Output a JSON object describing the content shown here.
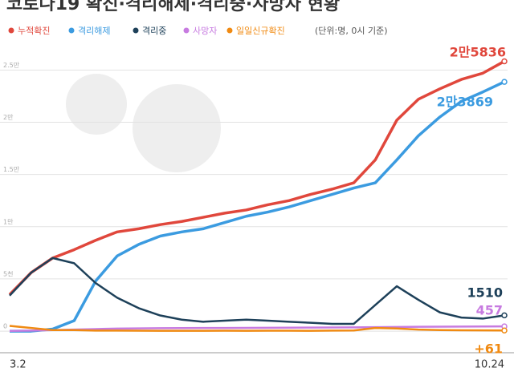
{
  "chart_data": {
    "type": "line",
    "title": "코로나19 확진·격리해제·격리중·사망자 현황",
    "subtitle": "(단위:명, 0시 기준)",
    "categories": [
      "3.2",
      null,
      null,
      null,
      null,
      null,
      null,
      null,
      null,
      null,
      null,
      null,
      null,
      null,
      null,
      null,
      null,
      null,
      null,
      null,
      null,
      null,
      null,
      "10.24"
    ],
    "series": [
      {
        "name": "누적확진",
        "color": "#e0473c",
        "values": [
          3500,
          5600,
          7000,
          7800,
          8700,
          9500,
          9800,
          10200,
          10500,
          10900,
          11300,
          11600,
          12100,
          12500,
          13100,
          13600,
          14200,
          16400,
          20200,
          22200,
          23200,
          24100,
          24700,
          25836
        ],
        "value_labels": [
          null,
          null,
          null,
          null,
          null,
          null,
          null,
          null,
          null,
          null,
          null,
          null,
          null,
          null,
          null,
          null,
          null,
          null,
          null,
          null,
          null,
          null,
          null,
          "2만5836"
        ]
      },
      {
        "name": "격리해제",
        "color": "#3b9be0",
        "values": [
          0,
          0,
          200,
          1000,
          4800,
          7200,
          8300,
          9100,
          9500,
          9800,
          10400,
          11000,
          11400,
          11900,
          12500,
          13100,
          13700,
          14200,
          16400,
          18700,
          20500,
          22000,
          22900,
          23869
        ],
        "value_labels": [
          null,
          null,
          null,
          null,
          null,
          null,
          null,
          null,
          null,
          null,
          null,
          null,
          null,
          null,
          null,
          null,
          null,
          null,
          null,
          null,
          null,
          null,
          null,
          "2만3869"
        ]
      },
      {
        "name": "격리중",
        "color": "#1d4059",
        "values": [
          3400,
          5600,
          7000,
          6500,
          4600,
          3200,
          2200,
          1500,
          1100,
          900,
          1000,
          1100,
          1000,
          900,
          800,
          700,
          700,
          2500,
          4300,
          3000,
          1800,
          1300,
          1200,
          1510
        ],
        "value_labels": [
          null,
          null,
          null,
          null,
          null,
          null,
          null,
          null,
          null,
          null,
          null,
          null,
          null,
          null,
          null,
          null,
          null,
          null,
          null,
          null,
          null,
          null,
          null,
          "1510"
        ]
      },
      {
        "name": "사망자",
        "color": "#c77be0",
        "values": [
          20,
          50,
          100,
          150,
          200,
          240,
          260,
          280,
          290,
          300,
          300,
          310,
          320,
          330,
          340,
          350,
          360,
          380,
          400,
          420,
          430,
          440,
          450,
          457
        ],
        "value_labels": [
          null,
          null,
          null,
          null,
          null,
          null,
          null,
          null,
          null,
          null,
          null,
          null,
          null,
          null,
          null,
          null,
          null,
          null,
          null,
          null,
          null,
          null,
          null,
          "457"
        ]
      },
      {
        "name": "일일신규확진",
        "color": "#f08a12",
        "values": [
          500,
          300,
          100,
          100,
          50,
          50,
          40,
          30,
          30,
          30,
          40,
          30,
          40,
          40,
          30,
          50,
          60,
          300,
          250,
          150,
          100,
          80,
          70,
          61
        ],
        "value_labels": [
          null,
          null,
          null,
          null,
          null,
          null,
          null,
          null,
          null,
          null,
          null,
          null,
          null,
          null,
          null,
          null,
          null,
          null,
          null,
          null,
          null,
          null,
          null,
          "+61"
        ]
      }
    ],
    "ylim": [
      -1300,
      27100
    ],
    "yticks": [
      0,
      {
        "value": 5000,
        "label": "5천"
      },
      {
        "value": 10000,
        "label": "1만"
      },
      {
        "value": 15000,
        "label": "1.5만"
      },
      {
        "value": 20000,
        "label": "2만"
      },
      {
        "value": 25000,
        "label": "2.5만"
      }
    ],
    "grid": true
  }
}
